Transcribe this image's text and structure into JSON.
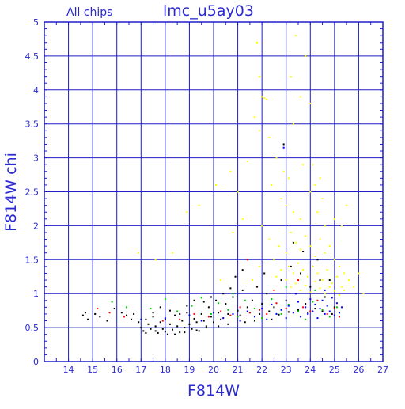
{
  "chart_data": {
    "type": "scatter",
    "title": "lmc_u5ay03",
    "subtitle": "All chips",
    "xlabel": "F814W",
    "ylabel": "F814W chi",
    "xlim": [
      13,
      27
    ],
    "ylim": [
      0,
      5
    ],
    "x_ticks": [
      14,
      15,
      16,
      17,
      18,
      19,
      20,
      21,
      22,
      23,
      24,
      25,
      26,
      27
    ],
    "y_ticks": [
      0,
      0.5,
      1,
      1.5,
      2,
      2.5,
      3,
      3.5,
      4,
      4.5,
      5
    ],
    "y_tick_labels": [
      "0",
      "0.5",
      "1",
      "1.5",
      "2",
      "2.5",
      "3",
      "3.5",
      "4",
      "4.5",
      "5"
    ],
    "x_tick_labels": [
      "14",
      "15",
      "16",
      "17",
      "18",
      "19",
      "20",
      "21",
      "22",
      "23",
      "24",
      "25",
      "26",
      "27"
    ],
    "grid": true,
    "legend": "none",
    "colors": {
      "frame": "#1e1ec8",
      "grid": "#1e1ec8",
      "text": "#2a2ad0"
    },
    "series": [
      {
        "color": "#000000",
        "points": [
          [
            14.6,
            0.68
          ],
          [
            14.7,
            0.72
          ],
          [
            14.8,
            0.62
          ],
          [
            15.1,
            0.7
          ],
          [
            15.3,
            0.66
          ],
          [
            15.6,
            0.6
          ],
          [
            15.9,
            0.78
          ],
          [
            16.2,
            0.72
          ],
          [
            16.4,
            0.68
          ],
          [
            16.6,
            0.62
          ],
          [
            16.7,
            0.7
          ],
          [
            16.9,
            0.58
          ],
          [
            17.0,
            0.5
          ],
          [
            17.1,
            0.45
          ],
          [
            17.2,
            0.62
          ],
          [
            17.3,
            0.55
          ],
          [
            17.4,
            0.48
          ],
          [
            17.5,
            0.66
          ],
          [
            17.6,
            0.52
          ],
          [
            17.7,
            0.42
          ],
          [
            17.8,
            0.58
          ],
          [
            17.9,
            0.48
          ],
          [
            18.0,
            0.62
          ],
          [
            18.1,
            0.4
          ],
          [
            18.2,
            0.55
          ],
          [
            18.3,
            0.47
          ],
          [
            18.4,
            0.68
          ],
          [
            18.5,
            0.52
          ],
          [
            18.6,
            0.43
          ],
          [
            18.7,
            0.6
          ],
          [
            18.8,
            0.5
          ],
          [
            18.9,
            0.72
          ],
          [
            19.0,
            0.55
          ],
          [
            19.1,
            0.48
          ],
          [
            19.2,
            0.63
          ],
          [
            19.3,
            0.58
          ],
          [
            19.4,
            0.45
          ],
          [
            19.5,
            0.7
          ],
          [
            19.6,
            0.6
          ],
          [
            19.7,
            0.52
          ],
          [
            19.8,
            0.8
          ],
          [
            19.9,
            0.66
          ],
          [
            20.0,
            0.58
          ],
          [
            20.1,
            0.9
          ],
          [
            20.2,
            0.72
          ],
          [
            20.3,
            0.62
          ],
          [
            20.5,
            0.85
          ],
          [
            20.6,
            0.7
          ],
          [
            20.8,
            0.95
          ],
          [
            21.0,
            0.75
          ],
          [
            21.2,
            1.05
          ],
          [
            21.4,
            0.8
          ],
          [
            21.6,
            0.9
          ],
          [
            21.8,
            1.1
          ],
          [
            22.0,
            0.85
          ],
          [
            22.2,
            1.0
          ],
          [
            22.5,
            0.8
          ],
          [
            22.8,
            1.2
          ],
          [
            23.0,
            0.9
          ],
          [
            23.2,
            1.4
          ],
          [
            23.4,
            1.0
          ],
          [
            23.6,
            1.3
          ],
          [
            23.8,
            0.85
          ],
          [
            24.0,
            1.1
          ],
          [
            24.3,
            1.5
          ],
          [
            24.6,
            0.95
          ],
          [
            24.8,
            1.2
          ],
          [
            25.0,
            0.8
          ],
          [
            17.5,
            0.72
          ],
          [
            17.8,
            0.8
          ],
          [
            18.2,
            0.75
          ],
          [
            18.6,
            0.7
          ],
          [
            18.9,
            0.82
          ],
          [
            19.2,
            0.9
          ],
          [
            19.6,
            0.88
          ],
          [
            19.9,
            0.95
          ],
          [
            20.4,
            1.0
          ],
          [
            20.7,
            1.08
          ],
          [
            21.1,
            0.68
          ],
          [
            21.5,
            0.72
          ],
          [
            21.9,
            0.7
          ],
          [
            22.3,
            0.74
          ],
          [
            22.7,
            0.69
          ],
          [
            23.1,
            0.73
          ],
          [
            23.5,
            0.76
          ],
          [
            23.9,
            0.71
          ],
          [
            24.2,
            0.78
          ],
          [
            24.5,
            0.74
          ],
          [
            24.9,
            0.7
          ],
          [
            25.2,
            0.72
          ],
          [
            17.2,
            0.42
          ],
          [
            17.6,
            0.45
          ],
          [
            18.0,
            0.44
          ],
          [
            18.4,
            0.4
          ],
          [
            18.8,
            0.43
          ],
          [
            19.3,
            0.46
          ],
          [
            19.7,
            0.5
          ],
          [
            20.2,
            0.52
          ],
          [
            20.6,
            0.55
          ],
          [
            21.3,
            0.58
          ],
          [
            21.7,
            0.6
          ],
          [
            22.4,
            0.62
          ],
          [
            23.3,
            1.75
          ],
          [
            23.7,
            1.62
          ],
          [
            24.1,
            1.4
          ],
          [
            24.4,
            1.2
          ],
          [
            22.9,
            3.2
          ],
          [
            21.2,
            1.35
          ],
          [
            20.9,
            1.25
          ],
          [
            22.1,
            1.3
          ]
        ]
      },
      {
        "color": "#ff0000",
        "points": [
          [
            15.2,
            0.78
          ],
          [
            15.7,
            0.72
          ],
          [
            16.3,
            0.66
          ],
          [
            17.9,
            0.6
          ],
          [
            18.6,
            0.62
          ],
          [
            19.2,
            0.7
          ],
          [
            19.8,
            0.66
          ],
          [
            20.3,
            0.74
          ],
          [
            20.7,
            0.68
          ],
          [
            21.1,
            0.8
          ],
          [
            21.5,
            0.72
          ],
          [
            21.9,
            0.76
          ],
          [
            22.2,
            0.7
          ],
          [
            22.6,
            0.86
          ],
          [
            23.0,
            0.78
          ],
          [
            23.3,
            0.72
          ],
          [
            23.7,
            0.8
          ],
          [
            24.0,
            0.74
          ],
          [
            24.3,
            0.9
          ],
          [
            24.7,
            0.7
          ],
          [
            25.0,
            0.78
          ],
          [
            25.2,
            0.66
          ],
          [
            21.4,
            1.5
          ],
          [
            22.5,
            1.05
          ],
          [
            23.5,
            1.2
          ]
        ]
      },
      {
        "color": "#00c800",
        "points": [
          [
            15.8,
            0.88
          ],
          [
            16.4,
            0.8
          ],
          [
            17.4,
            0.78
          ],
          [
            18.0,
            0.92
          ],
          [
            18.5,
            0.74
          ],
          [
            19.1,
            0.82
          ],
          [
            19.5,
            0.94
          ],
          [
            19.9,
            0.7
          ],
          [
            20.2,
            0.86
          ],
          [
            20.6,
            0.76
          ],
          [
            21.0,
            0.66
          ],
          [
            21.3,
            0.9
          ],
          [
            21.7,
            0.78
          ],
          [
            22.0,
            0.64
          ],
          [
            22.4,
            0.92
          ],
          [
            22.8,
            0.7
          ],
          [
            23.1,
            0.84
          ],
          [
            23.5,
            0.74
          ],
          [
            23.8,
            0.62
          ],
          [
            24.1,
            0.88
          ],
          [
            24.5,
            0.76
          ],
          [
            24.8,
            0.66
          ],
          [
            25.1,
            0.8
          ],
          [
            23.0,
            1.1
          ],
          [
            24.2,
            1.05
          ],
          [
            20.8,
            1.0
          ]
        ]
      },
      {
        "color": "#0000ff",
        "points": [
          [
            17.0,
            0.62
          ],
          [
            18.0,
            0.64
          ],
          [
            19.0,
            0.68
          ],
          [
            19.5,
            0.6
          ],
          [
            20.0,
            0.72
          ],
          [
            20.4,
            0.64
          ],
          [
            20.8,
            0.7
          ],
          [
            21.1,
            0.6
          ],
          [
            21.4,
            0.74
          ],
          [
            21.7,
            0.66
          ],
          [
            22.0,
            0.78
          ],
          [
            22.2,
            0.62
          ],
          [
            22.4,
            0.84
          ],
          [
            22.6,
            0.7
          ],
          [
            22.8,
            0.76
          ],
          [
            23.0,
            0.64
          ],
          [
            23.1,
            0.82
          ],
          [
            23.3,
            0.72
          ],
          [
            23.5,
            0.88
          ],
          [
            23.6,
            0.66
          ],
          [
            23.8,
            0.8
          ],
          [
            23.9,
            0.7
          ],
          [
            24.0,
            0.92
          ],
          [
            24.1,
            0.74
          ],
          [
            24.2,
            0.84
          ],
          [
            24.3,
            0.64
          ],
          [
            24.4,
            0.78
          ],
          [
            24.5,
            0.9
          ],
          [
            24.6,
            0.7
          ],
          [
            24.7,
            0.82
          ],
          [
            24.8,
            0.74
          ],
          [
            24.9,
            0.94
          ],
          [
            25.0,
            0.68
          ],
          [
            25.1,
            0.86
          ],
          [
            25.2,
            0.72
          ],
          [
            25.3,
            0.8
          ],
          [
            22.9,
            3.15
          ],
          [
            23.4,
            1.0
          ],
          [
            24.6,
            1.05
          ]
        ]
      },
      {
        "color": "#ffff00",
        "points": [
          [
            21.8,
            4.7
          ],
          [
            21.9,
            4.2
          ],
          [
            22.0,
            3.9
          ],
          [
            22.1,
            3.88
          ],
          [
            22.2,
            3.86
          ],
          [
            21.7,
            3.6
          ],
          [
            21.9,
            3.4
          ],
          [
            22.3,
            3.3
          ],
          [
            22.6,
            3.0
          ],
          [
            21.4,
            2.95
          ],
          [
            20.7,
            2.8
          ],
          [
            20.1,
            2.6
          ],
          [
            21.0,
            2.5
          ],
          [
            22.4,
            2.6
          ],
          [
            22.8,
            2.4
          ],
          [
            23.0,
            2.3
          ],
          [
            23.3,
            2.2
          ],
          [
            23.6,
            2.1
          ],
          [
            24.0,
            2.5
          ],
          [
            24.2,
            2.6
          ],
          [
            24.5,
            2.4
          ],
          [
            25.0,
            2.1
          ],
          [
            25.3,
            2.0
          ],
          [
            23.4,
            4.8
          ],
          [
            23.8,
            4.5
          ],
          [
            23.2,
            4.2
          ],
          [
            23.6,
            3.9
          ],
          [
            23.3,
            3.5
          ],
          [
            24.0,
            3.8
          ],
          [
            22.9,
            2.8
          ],
          [
            23.1,
            2.7
          ],
          [
            23.7,
            2.9
          ],
          [
            24.3,
            2.2
          ],
          [
            24.6,
            2.0
          ],
          [
            19.4,
            2.3
          ],
          [
            18.9,
            2.2
          ],
          [
            17.6,
            1.5
          ],
          [
            18.3,
            1.6
          ],
          [
            16.9,
            1.6
          ],
          [
            22.0,
            2.0
          ],
          [
            22.3,
            1.8
          ],
          [
            22.7,
            1.7
          ],
          [
            23.0,
            1.6
          ],
          [
            23.2,
            1.9
          ],
          [
            23.4,
            1.75
          ],
          [
            23.6,
            1.65
          ],
          [
            23.8,
            1.85
          ],
          [
            24.0,
            1.7
          ],
          [
            24.2,
            1.55
          ],
          [
            24.4,
            1.8
          ],
          [
            24.6,
            1.6
          ],
          [
            24.8,
            1.7
          ],
          [
            25.0,
            1.5
          ],
          [
            25.2,
            1.4
          ],
          [
            25.4,
            1.3
          ],
          [
            23.1,
            1.4
          ],
          [
            23.3,
            1.3
          ],
          [
            23.5,
            1.45
          ],
          [
            23.7,
            1.35
          ],
          [
            23.9,
            1.25
          ],
          [
            24.1,
            1.4
          ],
          [
            24.3,
            1.3
          ],
          [
            24.5,
            1.2
          ],
          [
            24.7,
            1.35
          ],
          [
            24.9,
            1.15
          ],
          [
            25.1,
            1.25
          ],
          [
            25.3,
            1.1
          ],
          [
            23.0,
            1.2
          ],
          [
            23.2,
            1.1
          ],
          [
            23.4,
            1.15
          ],
          [
            23.6,
            1.05
          ],
          [
            23.8,
            1.12
          ],
          [
            24.0,
            1.02
          ],
          [
            24.2,
            1.18
          ],
          [
            24.4,
            1.08
          ],
          [
            24.6,
            1.0
          ],
          [
            24.8,
            1.1
          ],
          [
            25.0,
            1.04
          ],
          [
            25.2,
            0.98
          ],
          [
            25.4,
            1.05
          ],
          [
            25.6,
            1.2
          ],
          [
            25.8,
            1.1
          ],
          [
            26.0,
            1.3
          ],
          [
            26.2,
            1.0
          ],
          [
            22.5,
            1.5
          ],
          [
            22.6,
            1.25
          ],
          [
            22.8,
            1.35
          ],
          [
            21.9,
            1.4
          ],
          [
            21.6,
            1.2
          ],
          [
            24.1,
            2.9
          ],
          [
            24.4,
            2.7
          ],
          [
            25.5,
            2.3
          ],
          [
            20.3,
            1.2
          ],
          [
            21.2,
            2.1
          ],
          [
            20.8,
            1.9
          ]
        ]
      }
    ]
  }
}
